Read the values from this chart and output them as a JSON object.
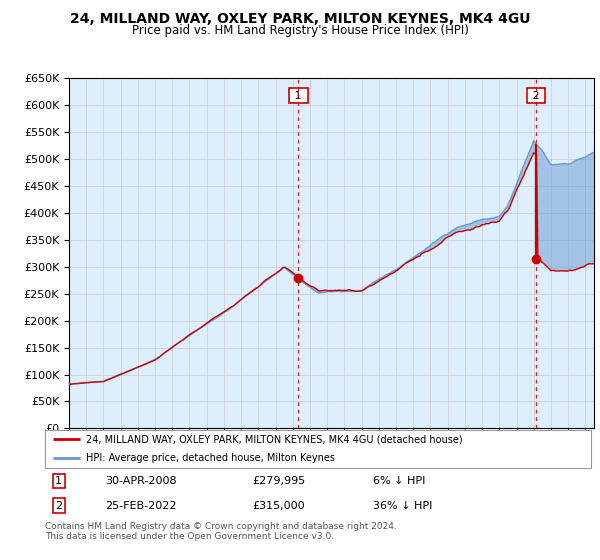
{
  "title": "24, MILLAND WAY, OXLEY PARK, MILTON KEYNES, MK4 4GU",
  "subtitle": "Price paid vs. HM Land Registry's House Price Index (HPI)",
  "title_fontsize": 10,
  "subtitle_fontsize": 8.5,
  "legend_label_red": "24, MILLAND WAY, OXLEY PARK, MILTON KEYNES, MK4 4GU (detached house)",
  "legend_label_blue": "HPI: Average price, detached house, Milton Keynes",
  "annotation1_label": "1",
  "annotation1_date": "30-APR-2008",
  "annotation1_price": "£279,995",
  "annotation1_hpi": "6% ↓ HPI",
  "annotation2_label": "2",
  "annotation2_date": "25-FEB-2022",
  "annotation2_price": "£315,000",
  "annotation2_hpi": "36% ↓ HPI",
  "footer": "Contains HM Land Registry data © Crown copyright and database right 2024.\nThis data is licensed under the Open Government Licence v3.0.",
  "red_color": "#cc0000",
  "blue_color": "#6699cc",
  "blue_fill": "#ddeeff",
  "background_color": "#ffffff",
  "grid_color": "#cccccc",
  "ylim": [
    0,
    650000
  ],
  "yticks": [
    0,
    50000,
    100000,
    150000,
    200000,
    250000,
    300000,
    350000,
    400000,
    450000,
    500000,
    550000,
    600000,
    650000
  ],
  "purchase1_x": 2008.33,
  "purchase1_y": 279995,
  "purchase2_x": 2022.12,
  "purchase2_y": 315000,
  "xlim_start": 1995,
  "xlim_end": 2025.5
}
